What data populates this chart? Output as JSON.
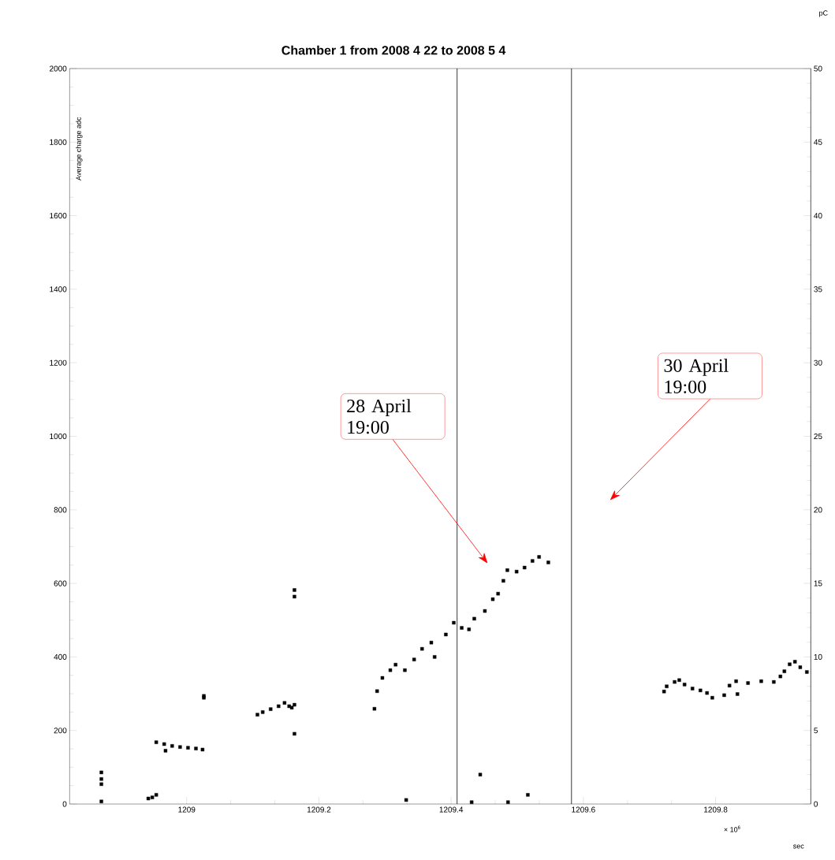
{
  "chart_data": {
    "type": "scatter",
    "title": "Chamber 1 from 2008 4 22 to 2008 5 4",
    "xlabel": "sec",
    "ylabel": "Average charge adc",
    "marker": "square",
    "color": "#000000",
    "x": [
      1208.871,
      1208.871,
      1208.871,
      1208.871,
      1208.942,
      1208.948,
      1208.954,
      1208.954,
      1208.966,
      1208.968,
      1208.978,
      1208.99,
      1209.002,
      1209.014,
      1209.024,
      1209.026,
      1209.026,
      1209.107,
      1209.115,
      1209.127,
      1209.139,
      1209.148,
      1209.155,
      1209.159,
      1209.163,
      1209.163,
      1209.163,
      1209.163,
      1209.284,
      1209.288,
      1209.296,
      1209.308,
      1209.316,
      1209.33,
      1209.332,
      1209.344,
      1209.356,
      1209.37,
      1209.375,
      1209.392,
      1209.404,
      1209.416,
      1209.427,
      1209.431,
      1209.435,
      1209.444,
      1209.451,
      1209.463,
      1209.471,
      1209.479,
      1209.485,
      1209.486,
      1209.499,
      1209.511,
      1209.516,
      1209.523,
      1209.533,
      1209.547,
      1209.722,
      1209.726,
      1209.738,
      1209.745,
      1209.753,
      1209.765,
      1209.777,
      1209.787,
      1209.795,
      1209.813,
      1209.821,
      1209.831,
      1209.833,
      1209.849,
      1209.869,
      1209.888,
      1209.898,
      1209.904,
      1209.912,
      1209.92,
      1209.928,
      1209.938
    ],
    "values": [
      86,
      68,
      54,
      7,
      15,
      18,
      25,
      168,
      163,
      145,
      158,
      155,
      153,
      151,
      148,
      289,
      294,
      243,
      250,
      258,
      266,
      275,
      266,
      262,
      270,
      582,
      564,
      191,
      259,
      307,
      343,
      364,
      379,
      364,
      11,
      393,
      422,
      439,
      400,
      461,
      493,
      479,
      475,
      5,
      504,
      80,
      525,
      557,
      572,
      607,
      636,
      5,
      632,
      643,
      25,
      661,
      672,
      657,
      306,
      320,
      332,
      337,
      325,
      314,
      309,
      302,
      289,
      296,
      322,
      334,
      299,
      329,
      334,
      332,
      347,
      361,
      380,
      387,
      372,
      359
    ],
    "xlim": [
      1208.823,
      1209.944
    ],
    "xticks": [
      1209,
      1209.2,
      1209.4,
      1209.6,
      1209.8
    ],
    "ylim": [
      0,
      2000
    ],
    "yticks": [
      0,
      200,
      400,
      600,
      800,
      1000,
      1200,
      1400,
      1600,
      1800,
      2000
    ],
    "y2lim": [
      0,
      50
    ],
    "y2ticks": [
      0,
      5,
      10,
      15,
      20,
      25,
      30,
      35,
      40,
      45,
      50
    ],
    "ref_lines": [
      {
        "axis": "x",
        "value": 1209.409,
        "color": "#000000"
      },
      {
        "axis": "x",
        "value": 1209.582,
        "color": "#000000"
      }
    ],
    "annotations": [
      "28 April 19:00",
      "30 April 19:00",
      "× 10$^{6}$",
      "pC"
    ],
    "grid": false
  }
}
